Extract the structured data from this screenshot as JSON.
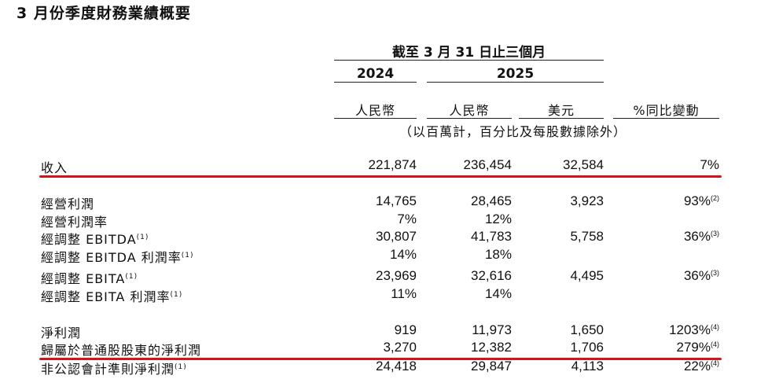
{
  "title": "3 月份季度財務業績概要",
  "period_header": "截至 3 月 31 日止三個月",
  "years": [
    "2024",
    "2025"
  ],
  "currencies": [
    "人民幣",
    "人民幣",
    "美元",
    "%同比變動"
  ],
  "unit_note": "（以百萬計，百分比及每股數據除外）",
  "rows": [
    {
      "label": "收入",
      "note": "",
      "v2024": "221,874",
      "v2025": "236,454",
      "usd": "32,584",
      "chg": "7%",
      "chg_note": ""
    },
    {
      "label": "經營利潤",
      "note": "",
      "v2024": "14,765",
      "v2025": "28,465",
      "usd": "3,923",
      "chg": "93%",
      "chg_note": "(2)"
    },
    {
      "label": "經營利潤率",
      "note": "",
      "v2024": "7%",
      "v2025": "12%",
      "usd": "",
      "chg": "",
      "chg_note": ""
    },
    {
      "label": "經調整 EBITDA",
      "note": "(1)",
      "v2024": "30,807",
      "v2025": "41,783",
      "usd": "5,758",
      "chg": "36%",
      "chg_note": "(3)"
    },
    {
      "label": "經調整 EBITDA 利潤率",
      "note": "(1)",
      "v2024": "14%",
      "v2025": "18%",
      "usd": "",
      "chg": "",
      "chg_note": ""
    },
    {
      "label": "經調整 EBITA",
      "note": "(1)",
      "v2024": "23,969",
      "v2025": "32,616",
      "usd": "4,495",
      "chg": "36%",
      "chg_note": "(3)"
    },
    {
      "label": "經調整 EBITA 利潤率",
      "note": "(1)",
      "v2024": "11%",
      "v2025": "14%",
      "usd": "",
      "chg": "",
      "chg_note": ""
    },
    {
      "label": "淨利潤",
      "note": "",
      "v2024": "919",
      "v2025": "11,973",
      "usd": "1,650",
      "chg": "1203%",
      "chg_note": "(4)"
    },
    {
      "label": "歸屬於普通股股東的淨利潤",
      "note": "",
      "v2024": "3,270",
      "v2025": "12,382",
      "usd": "1,706",
      "chg": "279%",
      "chg_note": "(4)"
    },
    {
      "label": "非公認會計準則淨利潤",
      "note": "(1)",
      "v2024": "24,418",
      "v2025": "29,847",
      "usd": "4,113",
      "chg": "22%",
      "chg_note": "(4)"
    }
  ],
  "colors": {
    "highlight_underline": "#d3141b",
    "text": "#111111"
  }
}
